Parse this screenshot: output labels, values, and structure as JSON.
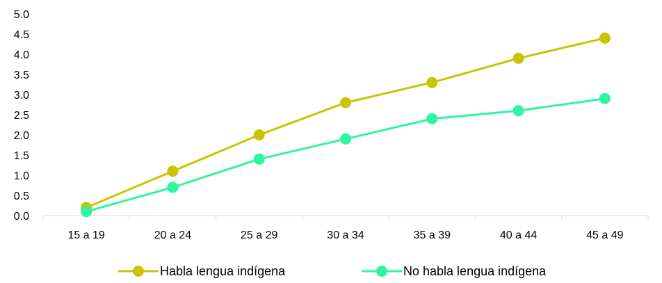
{
  "chart_data": {
    "type": "line",
    "title": "",
    "xlabel": "",
    "ylabel": "",
    "categories": [
      "15 a 19",
      "20 a 24",
      "25 a 29",
      "30 a 34",
      "35 a 39",
      "40 a 44",
      "45 a 49"
    ],
    "y_ticks": [
      "0.0",
      "0.5",
      "1.0",
      "1.5",
      "2.0",
      "2.5",
      "3.0",
      "3.5",
      "4.0",
      "4.5",
      "5.0"
    ],
    "ylim": [
      0,
      5
    ],
    "grid": false,
    "legend_position": "bottom",
    "series": [
      {
        "name": "Habla lengua indígena",
        "color": "#c9c400",
        "values": [
          0.2,
          1.1,
          2.0,
          2.8,
          3.3,
          3.9,
          4.4
        ]
      },
      {
        "name": "No habla lengua indígena",
        "color": "#2ef5a0",
        "values": [
          0.1,
          0.7,
          1.4,
          1.9,
          2.4,
          2.6,
          2.9
        ]
      }
    ]
  }
}
